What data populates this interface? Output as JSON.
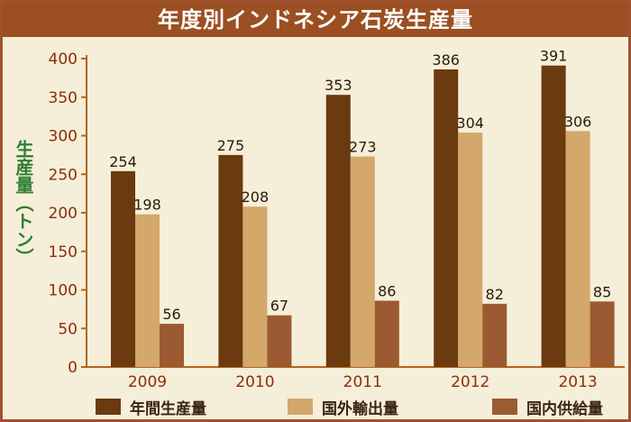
{
  "chart_data": {
    "type": "bar",
    "title": "年度別インドネシア石炭生産量",
    "ylabel": "生産量（トン）",
    "xlabel": "",
    "ylim": [
      0,
      400
    ],
    "yticks": [
      0,
      50,
      100,
      150,
      200,
      250,
      300,
      350,
      400
    ],
    "categories": [
      "2009",
      "2010",
      "2011",
      "2012",
      "2013"
    ],
    "series": [
      {
        "name": "年間生産量",
        "color": "#6b3a0f",
        "values": [
          254,
          275,
          353,
          386,
          391
        ]
      },
      {
        "name": "国外輸出量",
        "color": "#d4a76a",
        "values": [
          198,
          208,
          273,
          304,
          306
        ]
      },
      {
        "name": "国内供給量",
        "color": "#9c5a32",
        "values": [
          56,
          67,
          86,
          82,
          85
        ]
      }
    ],
    "legend_position": "bottom",
    "grid": false
  }
}
